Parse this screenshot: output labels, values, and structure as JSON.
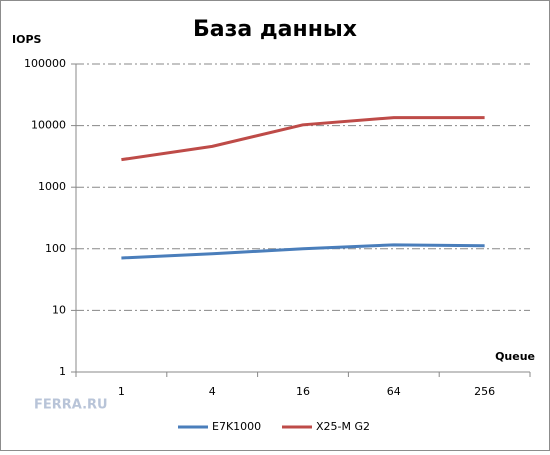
{
  "chart_data": {
    "type": "line",
    "title": "База данных",
    "y_label": "IOPS",
    "x_label": "Queue",
    "watermark": "FERRA.RU",
    "categories": [
      "1",
      "4",
      "16",
      "64",
      "256"
    ],
    "series": [
      {
        "name": "E7K1000",
        "color": "#4a7ebb",
        "values": [
          71,
          83,
          100,
          116,
          112
        ]
      },
      {
        "name": "X25-M G2",
        "color": "#be4b48",
        "values": [
          2800,
          4600,
          10300,
          13500,
          13500
        ]
      }
    ],
    "log_scale": true,
    "ylim": [
      1,
      100000
    ],
    "yticks": [
      1,
      10,
      100,
      1000,
      10000,
      100000
    ],
    "grid": true,
    "legend": "bottom"
  }
}
